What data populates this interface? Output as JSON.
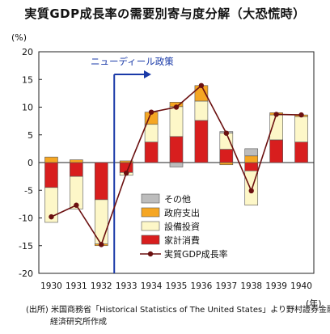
{
  "title": "実質GDP成長率の需要別寄与度分解（大恐慌時）",
  "unit_y": "(%)",
  "unit_x": "(年)",
  "annotation": "ニューディール政策",
  "source_lines": [
    "(出所) 米国商務省「Historical Statistics of  The United States」より野村證券金融",
    "経済研究所作成"
  ],
  "colors": {
    "other": "#bdbdbd",
    "government": "#f5a623",
    "investment": "#fdf7c8",
    "consumption": "#d81e1e",
    "gdp_line": "#6b1010",
    "annotation": "#1a3aa8"
  },
  "chart_data": {
    "type": "bar",
    "categories": [
      "1930",
      "1931",
      "1932",
      "1933",
      "1934",
      "1935",
      "1936",
      "1937",
      "1938",
      "1939",
      "1940"
    ],
    "ylim": [
      -20,
      20
    ],
    "yticks": [
      20,
      15,
      10,
      5,
      0,
      -5,
      -10,
      -15,
      -20
    ],
    "series": [
      {
        "name": "その他",
        "key": "other",
        "values": [
          0,
          0,
          0,
          0,
          0,
          -0.8,
          0,
          0.3,
          1.3,
          0,
          0
        ]
      },
      {
        "name": "政府支出",
        "key": "government",
        "values": [
          1.0,
          0.5,
          -0.3,
          0.3,
          2.2,
          0.8,
          2.8,
          -0.4,
          1.2,
          0.4,
          0.3
        ]
      },
      {
        "name": "設備投資",
        "key": "investment",
        "values": [
          -6.3,
          -5.9,
          -8.0,
          -0.5,
          3.2,
          5.4,
          3.5,
          2.9,
          -6.2,
          4.5,
          4.6
        ]
      },
      {
        "name": "家計消費",
        "key": "consumption",
        "values": [
          -4.5,
          -2.5,
          -6.7,
          -1.8,
          3.7,
          4.7,
          7.6,
          2.4,
          -1.5,
          4.1,
          3.7
        ]
      }
    ],
    "line": {
      "name": "実質GDP成長率",
      "values": [
        -9.8,
        -7.7,
        -14.8,
        -1.9,
        9.1,
        10.0,
        13.9,
        5.3,
        -5.1,
        8.7,
        8.6
      ]
    },
    "annotation_x_between": [
      "1932",
      "1933"
    ],
    "legend_position": "bottom-right"
  }
}
